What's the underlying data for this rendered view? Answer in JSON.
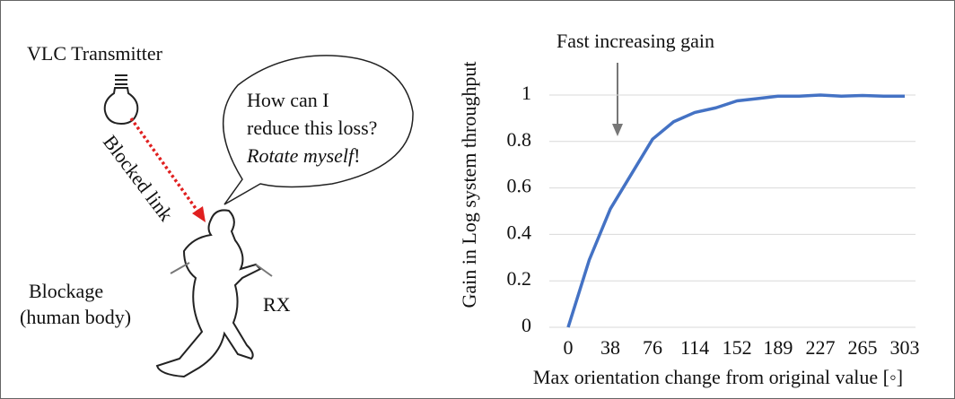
{
  "chart_data": {
    "type": "line",
    "annotation": "Fast increasing gain",
    "x_label": "Max orientation change from original value [◦]",
    "y_label": "Gain in Log system throughput",
    "x": [
      0,
      19,
      38,
      57,
      76,
      95,
      114,
      133,
      152,
      171,
      189,
      208,
      227,
      246,
      265,
      284,
      303
    ],
    "series": [
      {
        "color": "#4472c4",
        "values": [
          0,
          0.29,
          0.51,
          0.66,
          0.81,
          0.885,
          0.925,
          0.945,
          0.975,
          0.985,
          0.995,
          0.995,
          1.0,
          0.995,
          0.998,
          0.995,
          0.995
        ]
      }
    ],
    "xlim": [
      0,
      303
    ],
    "xticks": [
      0,
      38,
      76,
      114,
      152,
      189,
      227,
      265,
      303
    ],
    "ylim": [
      0,
      1
    ],
    "yticks": [
      0,
      0.2,
      0.4,
      0.6,
      0.8,
      1
    ],
    "grid": true
  },
  "diagram": {
    "transmitter": "VLC Transmitter",
    "link": "Blocked link",
    "bubble": [
      "How can I",
      "reduce this loss?"
    ],
    "bubble_italic": "Rotate myself",
    "bubble_end": "!",
    "blockage": [
      "Blockage",
      "(human body)"
    ],
    "receiver": "RX"
  }
}
